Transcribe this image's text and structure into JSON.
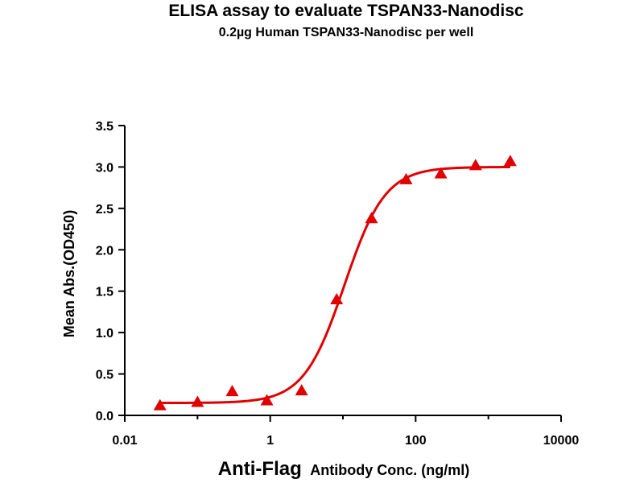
{
  "chart_data": {
    "type": "scatter",
    "title": "ELISA assay to evaluate TSPAN33-Nanodisc",
    "subtitle": "0.2µg Human TSPAN33-Nanodisc per well",
    "xlabel_main": "Anti-Flag",
    "xlabel_rest": "Antibody Conc. (ng/ml)",
    "ylabel": "Mean Abs.(OD450)",
    "xscale": "log",
    "xlim": [
      0.01,
      10000
    ],
    "ylim": [
      0,
      3.5
    ],
    "xticks": [
      0.01,
      1,
      100,
      10000
    ],
    "xtick_labels": [
      "0.01",
      "1",
      "100",
      "10000"
    ],
    "yticks": [
      0.0,
      0.5,
      1.0,
      1.5,
      2.0,
      2.5,
      3.0,
      3.5
    ],
    "ytick_labels": [
      "0.0",
      "0.5",
      "1.0",
      "1.5",
      "2.0",
      "2.5",
      "3.0",
      "3.5"
    ],
    "grid": false,
    "series": [
      {
        "marker": "triangle",
        "color": "#e00000",
        "x": [
          0.0305,
          0.1,
          0.3,
          0.9,
          2.7,
          8.2,
          24.7,
          74,
          222,
          667,
          2000
        ],
        "y": [
          0.12,
          0.16,
          0.29,
          0.18,
          0.3,
          1.4,
          2.38,
          2.85,
          2.92,
          3.02,
          3.07
        ]
      }
    ],
    "fit_curve": {
      "model": "4PL",
      "color": "#e00000",
      "bottom": 0.15,
      "top": 3.0,
      "ec50": 10.5,
      "hill": 1.55
    }
  }
}
